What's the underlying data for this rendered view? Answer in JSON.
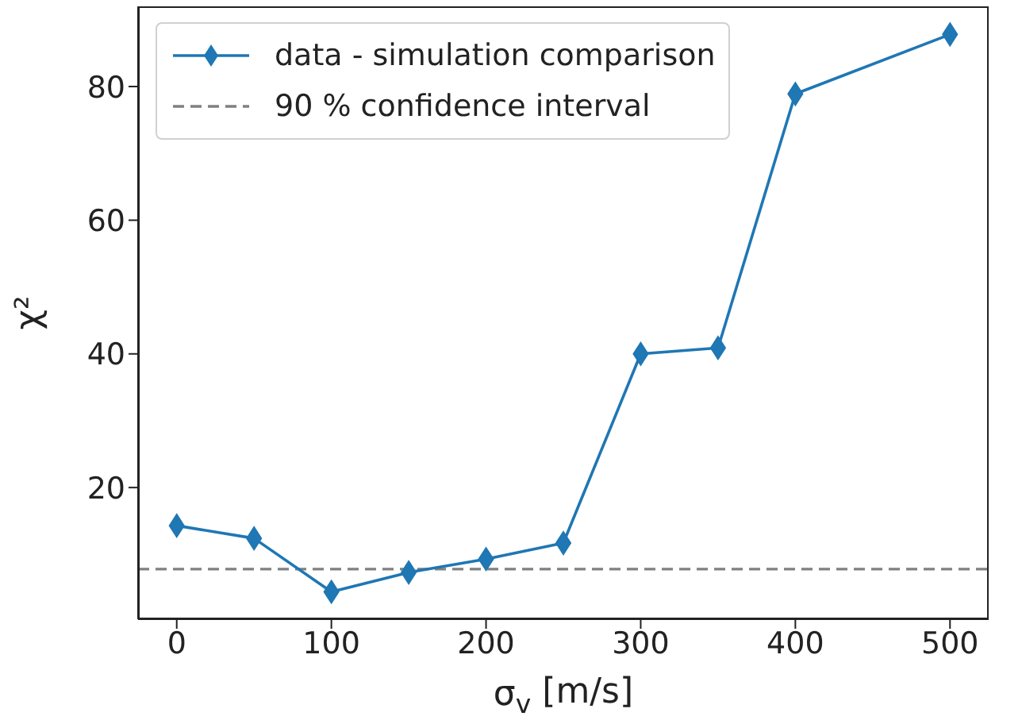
{
  "chart_data": {
    "type": "line",
    "xlabel": "σ$_{v}$ [m/s]",
    "ylabel": "χ²",
    "x": [
      0,
      50,
      100,
      150,
      200,
      250,
      300,
      350,
      400,
      500
    ],
    "series": [
      {
        "name": "data - simulation comparison",
        "color": "#1f77b4",
        "values": [
          14.3,
          12.4,
          4.4,
          7.3,
          9.3,
          11.7,
          40.0,
          40.9,
          78.9,
          87.8
        ]
      }
    ],
    "xlim": [
      -25,
      525
    ],
    "xticks": [
      0,
      100,
      200,
      300,
      400,
      500
    ],
    "ylim": [
      0.3,
      92
    ],
    "yticks": [
      20,
      40,
      60,
      80
    ],
    "ref_lines": [
      {
        "axis": "y",
        "value": 7.8,
        "label": "90 % confidence interval",
        "color": "#808080",
        "line_style": "dashed"
      }
    ],
    "marker": "diamond",
    "line_style": "solid",
    "grid": false,
    "legend": "top left"
  }
}
